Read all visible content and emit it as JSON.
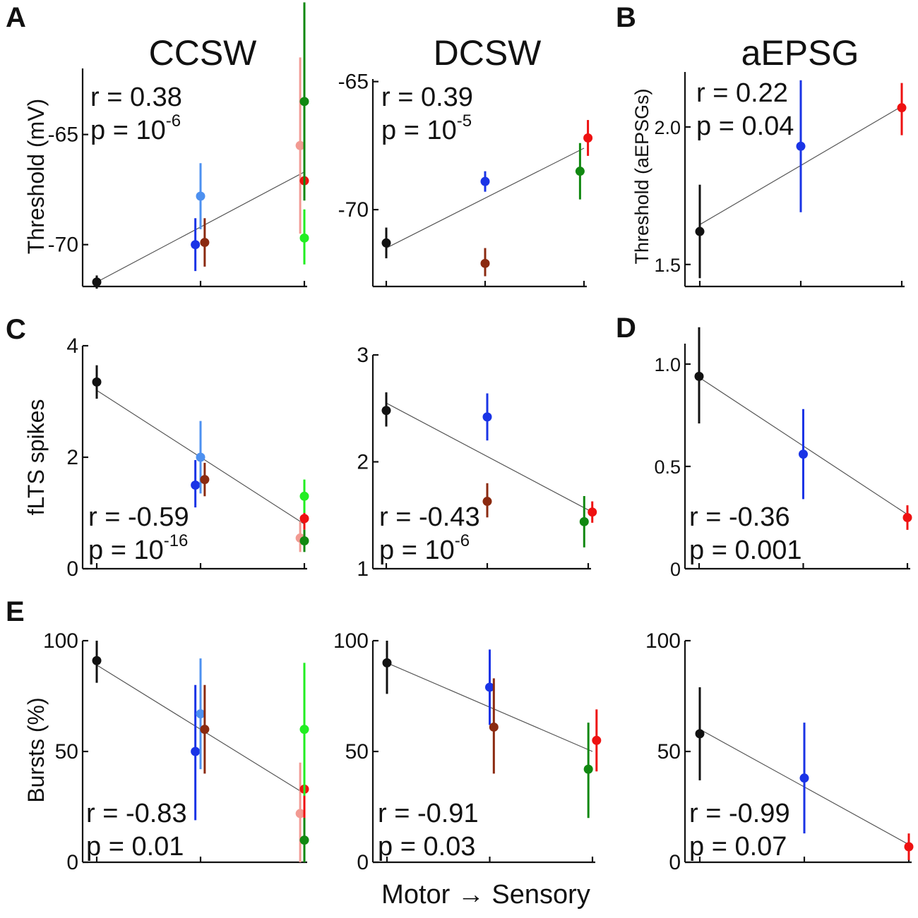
{
  "x_axis_label": "Motor → Sensory",
  "column_titles": {
    "ccsw": "CCSW",
    "dcsw": "DCSW",
    "aepsg": "aEPSG"
  },
  "colors": {
    "black": "#111111",
    "blue": "#1a34e6",
    "lightblue": "#4d90f0",
    "brown": "#8b2a10",
    "pink": "#f29a92",
    "red": "#ee1111",
    "lime": "#22ee22",
    "green": "#118811"
  },
  "chart_data": [
    {
      "id": "A-ccsw",
      "type": "scatter",
      "panel_letter": "A",
      "title": "CCSW",
      "ylabel": "Threshold (mV)",
      "ylim": [
        -71.9,
        -62.0
      ],
      "yticks": [
        {
          "v": -65,
          "label": "-65"
        },
        {
          "v": -70,
          "label": "-70"
        }
      ],
      "stat_r": "r = 0.38",
      "stat_p": "p = 10",
      "stat_p_exp": "-6",
      "stat_pos": "top",
      "fit": {
        "x1": 0,
        "y1": -71.7,
        "x2": 2,
        "y2": -66.7
      },
      "points": [
        {
          "x": 0,
          "y": -71.7,
          "lo": -72.0,
          "hi": -71.4,
          "color": "black"
        },
        {
          "x": 0.95,
          "y": -70.0,
          "lo": -71.2,
          "hi": -68.8,
          "color": "blue"
        },
        {
          "x": 1.0,
          "y": -67.8,
          "lo": -69.3,
          "hi": -66.3,
          "color": "lightblue"
        },
        {
          "x": 1.04,
          "y": -69.9,
          "lo": -71.0,
          "hi": -68.8,
          "color": "brown"
        },
        {
          "x": 1.96,
          "y": -65.5,
          "lo": -69.5,
          "hi": -61.5,
          "color": "pink"
        },
        {
          "x": 2.0,
          "y": -67.1,
          "lo": -67.9,
          "hi": -66.3,
          "color": "red"
        },
        {
          "x": 2.0,
          "y": -69.7,
          "lo": -70.9,
          "hi": -68.4,
          "color": "lime"
        },
        {
          "x": 2.0,
          "y": -63.5,
          "lo": -68.0,
          "hi": -59.0,
          "color": "green"
        }
      ]
    },
    {
      "id": "A-dcsw",
      "type": "scatter",
      "panel_letter": "",
      "title": "DCSW",
      "ylabel": "",
      "ylim": [
        -73.0,
        -64.9
      ],
      "yticks": [
        {
          "v": -65,
          "label": "-65"
        },
        {
          "v": -70,
          "label": "-70"
        }
      ],
      "stat_r": "r = 0.39",
      "stat_p": "p = 10",
      "stat_p_exp": "-5",
      "stat_pos": "top",
      "fit": {
        "x1": 0,
        "y1": -71.5,
        "x2": 2,
        "y2": -67.6
      },
      "points": [
        {
          "x": 0,
          "y": -71.3,
          "lo": -71.9,
          "hi": -70.7,
          "color": "black"
        },
        {
          "x": 1.0,
          "y": -68.9,
          "lo": -69.3,
          "hi": -68.5,
          "color": "blue"
        },
        {
          "x": 1.0,
          "y": -72.1,
          "lo": -72.6,
          "hi": -71.5,
          "color": "brown"
        },
        {
          "x": 1.96,
          "y": -68.5,
          "lo": -69.6,
          "hi": -67.4,
          "color": "green"
        },
        {
          "x": 2.04,
          "y": -67.2,
          "lo": -67.9,
          "hi": -66.5,
          "color": "red"
        }
      ]
    },
    {
      "id": "B-aepsg",
      "type": "scatter",
      "panel_letter": "B",
      "title": "aEPSG",
      "ylabel": "Threshold (aEPSGs)",
      "ylim": [
        1.42,
        2.2
      ],
      "yticks": [
        {
          "v": 2.0,
          "label": "2.0"
        },
        {
          "v": 1.5,
          "label": "1.5"
        }
      ],
      "stat_r": "r = 0.22",
      "stat_p": "p = 0.04",
      "stat_p_exp": "",
      "stat_pos": "top",
      "fit": {
        "x1": 0,
        "y1": 1.645,
        "x2": 2,
        "y2": 2.075
      },
      "points": [
        {
          "x": 0,
          "y": 1.62,
          "lo": 1.45,
          "hi": 1.79,
          "color": "black"
        },
        {
          "x": 1.0,
          "y": 1.93,
          "lo": 1.69,
          "hi": 2.17,
          "color": "blue"
        },
        {
          "x": 2.0,
          "y": 2.07,
          "lo": 1.97,
          "hi": 2.16,
          "color": "red"
        }
      ]
    },
    {
      "id": "C-ccsw",
      "type": "scatter",
      "panel_letter": "C",
      "title": "",
      "ylabel": "fLTS spikes",
      "ylim": [
        0,
        4
      ],
      "yticks": [
        {
          "v": 4,
          "label": "4"
        },
        {
          "v": 2,
          "label": "2"
        },
        {
          "v": 0,
          "label": "0"
        }
      ],
      "stat_r": "r = -0.59",
      "stat_p": "p = 10",
      "stat_p_exp": "-16",
      "stat_pos": "bottom",
      "fit": {
        "x1": 0,
        "y1": 3.2,
        "x2": 2,
        "y2": 0.8
      },
      "points": [
        {
          "x": 0,
          "y": 3.35,
          "lo": 3.05,
          "hi": 3.65,
          "color": "black"
        },
        {
          "x": 0.95,
          "y": 1.5,
          "lo": 1.1,
          "hi": 1.95,
          "color": "blue"
        },
        {
          "x": 1.0,
          "y": 2.0,
          "lo": 1.35,
          "hi": 2.65,
          "color": "lightblue"
        },
        {
          "x": 1.04,
          "y": 1.6,
          "lo": 1.3,
          "hi": 1.9,
          "color": "brown"
        },
        {
          "x": 1.96,
          "y": 0.55,
          "lo": 0.3,
          "hi": 0.85,
          "color": "pink"
        },
        {
          "x": 2.0,
          "y": 0.9,
          "lo": 0.7,
          "hi": 1.1,
          "color": "red"
        },
        {
          "x": 2.0,
          "y": 1.3,
          "lo": 1.0,
          "hi": 1.6,
          "color": "lime"
        },
        {
          "x": 2.0,
          "y": 0.5,
          "lo": 0.3,
          "hi": 0.7,
          "color": "green"
        }
      ]
    },
    {
      "id": "C-dcsw",
      "type": "scatter",
      "panel_letter": "",
      "title": "",
      "ylabel": "",
      "ylim": [
        1,
        3
      ],
      "yticks": [
        {
          "v": 3,
          "label": "3"
        },
        {
          "v": 2,
          "label": "2"
        },
        {
          "v": 1,
          "label": "1"
        }
      ],
      "stat_r": "r = -0.43",
      "stat_p": "p = 10",
      "stat_p_exp": "-6",
      "stat_pos": "bottom",
      "fit": {
        "x1": 0,
        "y1": 2.55,
        "x2": 2,
        "y2": 1.55
      },
      "points": [
        {
          "x": 0,
          "y": 2.48,
          "lo": 2.33,
          "hi": 2.65,
          "color": "black"
        },
        {
          "x": 1.0,
          "y": 2.42,
          "lo": 2.2,
          "hi": 2.64,
          "color": "blue"
        },
        {
          "x": 1.0,
          "y": 1.63,
          "lo": 1.48,
          "hi": 1.8,
          "color": "brown"
        },
        {
          "x": 1.96,
          "y": 1.44,
          "lo": 1.2,
          "hi": 1.68,
          "color": "green"
        },
        {
          "x": 2.04,
          "y": 1.53,
          "lo": 1.43,
          "hi": 1.63,
          "color": "red"
        }
      ]
    },
    {
      "id": "D-aepsg",
      "type": "scatter",
      "panel_letter": "D",
      "title": "",
      "ylabel": "",
      "ylim": [
        0,
        1.1
      ],
      "yticks": [
        {
          "v": 1.0,
          "label": "1.0"
        },
        {
          "v": 0.5,
          "label": "0.5"
        },
        {
          "v": 0,
          "label": "0"
        }
      ],
      "stat_r": "r = -0.36",
      "stat_p": "p = 0.001",
      "stat_p_exp": "",
      "stat_pos": "bottom",
      "fit": {
        "x1": 0,
        "y1": 0.935,
        "x2": 2,
        "y2": 0.265
      },
      "points": [
        {
          "x": 0,
          "y": 0.94,
          "lo": 0.71,
          "hi": 1.18,
          "color": "black"
        },
        {
          "x": 1.0,
          "y": 0.56,
          "lo": 0.34,
          "hi": 0.78,
          "color": "blue"
        },
        {
          "x": 2.0,
          "y": 0.25,
          "lo": 0.19,
          "hi": 0.31,
          "color": "red"
        }
      ]
    },
    {
      "id": "E-ccsw",
      "type": "scatter",
      "panel_letter": "E",
      "title": "",
      "ylabel": "Bursts (%)",
      "ylim": [
        0,
        100
      ],
      "yticks": [
        {
          "v": 100,
          "label": "100"
        },
        {
          "v": 50,
          "label": "50"
        },
        {
          "v": 0,
          "label": "0"
        }
      ],
      "stat_r": "r = -0.83",
      "stat_p": "p = 0.01",
      "stat_p_exp": "",
      "stat_pos": "bottom",
      "fit": {
        "x1": 0,
        "y1": 89,
        "x2": 2,
        "y2": 31
      },
      "points": [
        {
          "x": 0,
          "y": 91,
          "lo": 81,
          "hi": 100,
          "color": "black"
        },
        {
          "x": 0.95,
          "y": 50,
          "lo": 19,
          "hi": 80,
          "color": "blue"
        },
        {
          "x": 1.0,
          "y": 67,
          "lo": 42,
          "hi": 92,
          "color": "lightblue"
        },
        {
          "x": 1.04,
          "y": 60,
          "lo": 40,
          "hi": 80,
          "color": "brown"
        },
        {
          "x": 1.96,
          "y": 22,
          "lo": 0,
          "hi": 45,
          "color": "pink"
        },
        {
          "x": 2.0,
          "y": 33,
          "lo": 18,
          "hi": 48,
          "color": "red"
        },
        {
          "x": 2.0,
          "y": 60,
          "lo": 30,
          "hi": 90,
          "color": "lime"
        },
        {
          "x": 2.0,
          "y": 10,
          "lo": 0,
          "hi": 20,
          "color": "green"
        }
      ]
    },
    {
      "id": "E-dcsw",
      "type": "scatter",
      "panel_letter": "",
      "title": "",
      "ylabel": "",
      "ylim": [
        0,
        100
      ],
      "yticks": [
        {
          "v": 100,
          "label": "100"
        },
        {
          "v": 50,
          "label": "50"
        },
        {
          "v": 0,
          "label": "0"
        }
      ],
      "stat_r": "r = -0.91",
      "stat_p": "p = 0.03",
      "stat_p_exp": "",
      "stat_pos": "bottom",
      "fit": {
        "x1": 0,
        "y1": 90,
        "x2": 2,
        "y2": 50
      },
      "points": [
        {
          "x": 0,
          "y": 90,
          "lo": 76,
          "hi": 100,
          "color": "black"
        },
        {
          "x": 1.0,
          "y": 79,
          "lo": 62,
          "hi": 96,
          "color": "blue"
        },
        {
          "x": 1.04,
          "y": 61,
          "lo": 40,
          "hi": 83,
          "color": "brown"
        },
        {
          "x": 1.96,
          "y": 42,
          "lo": 20,
          "hi": 63,
          "color": "green"
        },
        {
          "x": 2.04,
          "y": 55,
          "lo": 41,
          "hi": 69,
          "color": "red"
        }
      ]
    },
    {
      "id": "E-aepsg",
      "type": "scatter",
      "panel_letter": "",
      "title": "",
      "ylabel": "",
      "ylim": [
        0,
        100
      ],
      "yticks": [
        {
          "v": 100,
          "label": "100"
        },
        {
          "v": 50,
          "label": "50"
        },
        {
          "v": 0,
          "label": "0"
        }
      ],
      "stat_r": "r = -0.99",
      "stat_p": "p = 0.07",
      "stat_p_exp": "",
      "stat_pos": "bottom",
      "fit": {
        "x1": 0,
        "y1": 60,
        "x2": 2,
        "y2": 8
      },
      "points": [
        {
          "x": 0,
          "y": 58,
          "lo": 37,
          "hi": 79,
          "color": "black"
        },
        {
          "x": 1.0,
          "y": 38,
          "lo": 13,
          "hi": 63,
          "color": "blue"
        },
        {
          "x": 2.0,
          "y": 7,
          "lo": 1,
          "hi": 13,
          "color": "red"
        }
      ]
    }
  ]
}
